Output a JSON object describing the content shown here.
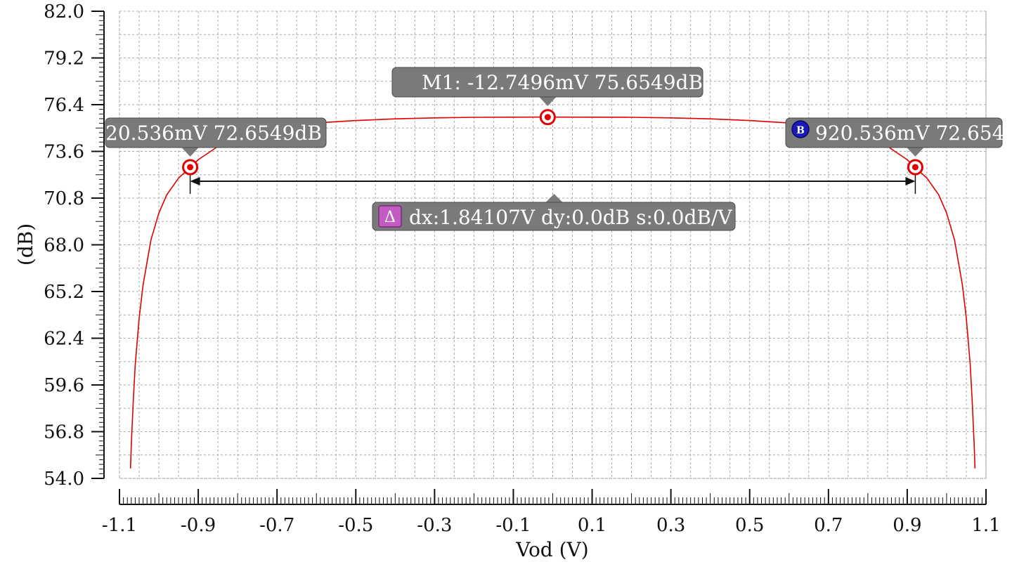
{
  "chart_data": {
    "type": "line",
    "xlabel": "Vod (V)",
    "ylabel": "(dB)",
    "xlim": [
      -1.1,
      1.1
    ],
    "ylim": [
      54.0,
      82.0
    ],
    "x_ticks": [
      "-1.1",
      "-0.9",
      "-0.7",
      "-0.5",
      "-0.3",
      "-0.1",
      "0.1",
      "0.3",
      "0.5",
      "0.7",
      "0.9",
      "1.1"
    ],
    "y_ticks": [
      "54.0",
      "56.8",
      "59.6",
      "62.4",
      "65.2",
      "68.0",
      "70.8",
      "73.6",
      "76.4",
      "79.2",
      "82.0"
    ],
    "grid": true,
    "line_color": "#e00000",
    "series": [
      {
        "x": [
          -1.072,
          -1.07,
          -1.065,
          -1.06,
          -1.05,
          -1.04,
          -1.02,
          -1.0,
          -0.98,
          -0.95,
          -0.92,
          -0.9,
          -0.85,
          -0.8,
          -0.7,
          -0.6,
          -0.5,
          -0.4,
          -0.3,
          -0.2,
          -0.1,
          -0.0127,
          0.1,
          0.2,
          0.3,
          0.4,
          0.5,
          0.6,
          0.7,
          0.8,
          0.85,
          0.9,
          0.92,
          0.95,
          0.98,
          1.0,
          1.02,
          1.04,
          1.05,
          1.06,
          1.065,
          1.07,
          1.072
        ],
        "y": [
          54.6,
          56.0,
          58.6,
          60.8,
          63.6,
          65.6,
          68.3,
          69.9,
          71.0,
          72.0,
          72.65,
          73.1,
          73.9,
          74.4,
          75.0,
          75.3,
          75.45,
          75.55,
          75.61,
          75.64,
          75.65,
          75.655,
          75.65,
          75.64,
          75.61,
          75.55,
          75.45,
          75.3,
          75.0,
          74.4,
          73.9,
          73.1,
          72.65,
          72.0,
          71.0,
          69.9,
          68.3,
          65.6,
          63.6,
          60.8,
          58.6,
          56.0,
          54.6
        ]
      }
    ],
    "markers": [
      {
        "id": "M1",
        "x": -0.0127496,
        "y": 75.6549,
        "label": "M1: -12.7496mV 75.6549dB"
      },
      {
        "id": "A",
        "x": -0.920536,
        "y": 72.6549,
        "label": "20.536mV 72.6549dB"
      },
      {
        "id": "B",
        "x": 0.920536,
        "y": 72.6549,
        "label": "920.536mV 72.654",
        "badge": "B"
      }
    ],
    "delta": {
      "badge": "Δ",
      "label": "dx:1.84107V dy:0.0dB s:0.0dB/V"
    }
  }
}
